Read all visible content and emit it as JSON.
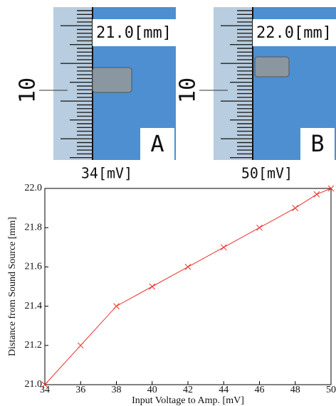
{
  "panels": [
    {
      "distance": "21.0[mm]",
      "letter": "A",
      "voltage": "34[mV]",
      "scale_mark": "10"
    },
    {
      "distance": "22.0[mm]",
      "letter": "B",
      "voltage": "50[mV]",
      "scale_mark": "10"
    }
  ],
  "chart_data": {
    "type": "line",
    "marker": "x",
    "color": "#e8322b",
    "x_label": "Input Voltage to Amp. [mV]",
    "y_label": "Distance from Sound Source [mm]",
    "x": [
      34,
      36,
      38,
      40,
      42,
      44,
      46,
      48,
      49.2,
      50
    ],
    "values": [
      21.0,
      21.2,
      21.4,
      21.5,
      21.6,
      21.7,
      21.8,
      21.9,
      21.97,
      22.0
    ],
    "xlim": [
      34,
      50
    ],
    "xticks": [
      34,
      36,
      38,
      40,
      42,
      44,
      46,
      48,
      50
    ],
    "ylim": [
      21.0,
      22.0
    ],
    "yticks": [
      {
        "value": 21.0,
        "label": "21.0"
      },
      {
        "value": 21.2,
        "label": "21.2"
      },
      {
        "value": 21.4,
        "label": "21.4"
      },
      {
        "value": 21.6,
        "label": "21.6"
      },
      {
        "value": 21.8,
        "label": "21.8"
      },
      {
        "value": 22.0,
        "label": "22.0"
      }
    ],
    "grid": false
  }
}
